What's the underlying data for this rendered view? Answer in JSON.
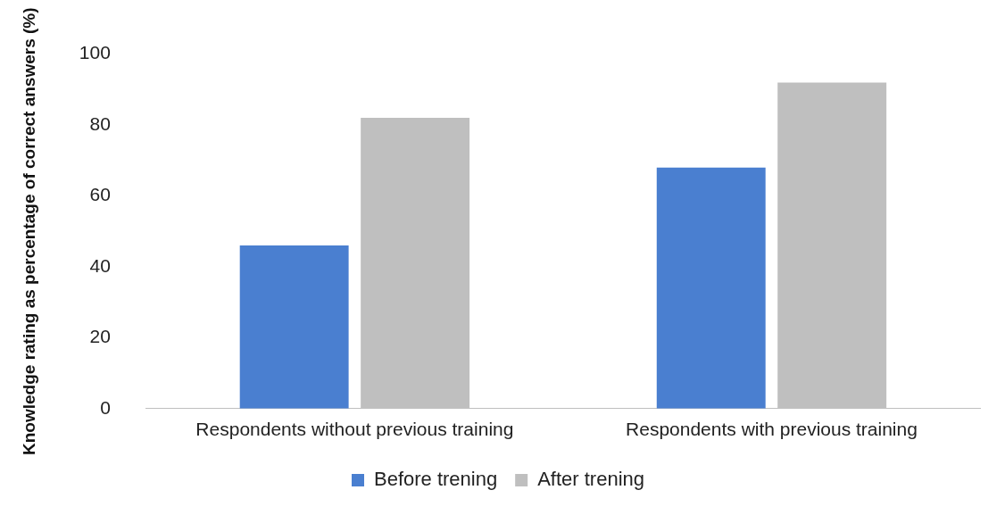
{
  "chart_data": {
    "type": "bar",
    "ylabel": "Knowledge rating as percentage of correct answers (%)",
    "categories": [
      "Respondents without previous training",
      "Respondents with previous training"
    ],
    "series": [
      {
        "name": "Before trening",
        "color": "#4a7fd0",
        "values": [
          46,
          68
        ]
      },
      {
        "name": "After trening",
        "color": "#bfbfbf",
        "values": [
          82,
          92
        ]
      }
    ],
    "ylim": [
      0,
      100
    ],
    "yticks": [
      0,
      20,
      40,
      60,
      80,
      100
    ],
    "grid": false,
    "legend": "bottom"
  }
}
